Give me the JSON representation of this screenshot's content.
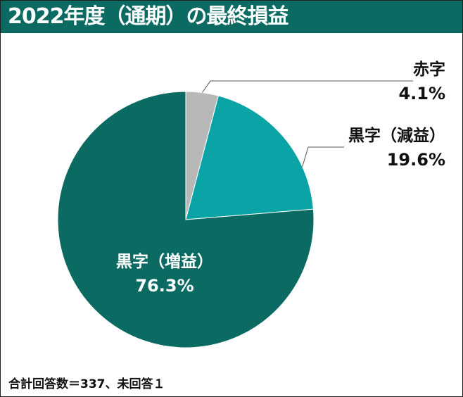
{
  "title": "2022年度（通期）の最終損益",
  "footer_note": "合計回答数＝337、未回答１",
  "colors": {
    "header_bg": "#0b6b62",
    "slice_increase": "#0b6b62",
    "slice_decrease": "#0aa3a6",
    "slice_loss": "#b8b8b8"
  },
  "chart_data": {
    "type": "pie",
    "title": "2022年度（通期）の最終損益",
    "slices": [
      {
        "label": "赤字",
        "value": 4.1,
        "display": "4.1%"
      },
      {
        "label": "黒字（減益）",
        "value": 19.6,
        "display": "19.6%"
      },
      {
        "label": "黒字（増益）",
        "value": 76.3,
        "display": "76.3%"
      }
    ],
    "start_angle": "12 o'clock",
    "direction": "clockwise"
  }
}
